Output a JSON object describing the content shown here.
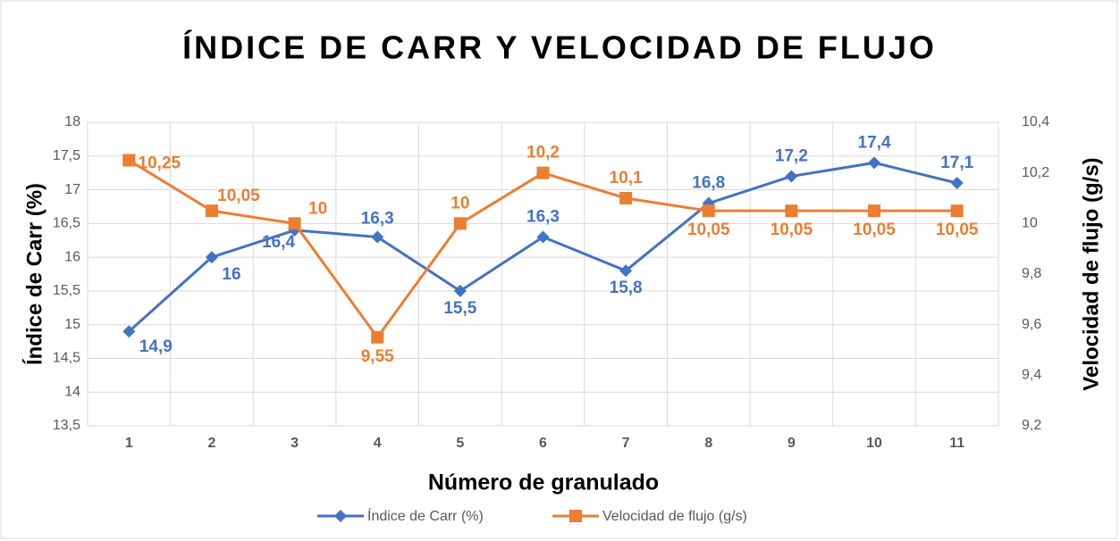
{
  "chart_data": {
    "type": "line",
    "title": "ÍNDICE DE CARR Y VELOCIDAD DE FLUJO",
    "xlabel": "Número de granulado",
    "ylabel": "Índice de Carr (%)",
    "y2label": "Velocidad de flujo (g/s)",
    "categories": [
      "1",
      "2",
      "3",
      "4",
      "5",
      "6",
      "7",
      "8",
      "9",
      "10",
      "11"
    ],
    "series": [
      {
        "name": "Índice de Carr (%)",
        "color": "#4472c4",
        "marker": "diamond",
        "values": [
          14.9,
          16,
          16.4,
          16.3,
          15.5,
          16.3,
          15.8,
          16.8,
          17.2,
          17.4,
          17.1
        ],
        "value_labels": [
          "14,9",
          "16",
          "16,4",
          "16,3",
          "15,5",
          "16,3",
          "15,8",
          "16,8",
          "17,2",
          "17,4",
          "17,1"
        ]
      },
      {
        "name": "Velocidad de flujo (g/s)",
        "color": "#ed7d31",
        "marker": "square",
        "axis": "y2",
        "values": [
          10.25,
          10.05,
          10,
          9.55,
          10,
          10.2,
          10.1,
          10.05,
          10.05,
          10.05,
          10.05
        ],
        "value_labels": [
          "10,25",
          "10,05",
          "10",
          "9,55",
          "10",
          "10,2",
          "10,1",
          "10,05",
          "10,05",
          "10,05",
          "10,05"
        ]
      }
    ],
    "ylim": [
      13.5,
      18
    ],
    "yticks": [
      {
        "value": 13.5,
        "label": "13,5"
      },
      14,
      {
        "value": 14.5,
        "label": "14,5"
      },
      15,
      {
        "value": 15.5,
        "label": "15,5"
      },
      16,
      {
        "value": 16.5,
        "label": "16,5"
      },
      17,
      {
        "value": 17.5,
        "label": "17,5"
      },
      18
    ],
    "y2lim": [
      9.2,
      10.4
    ],
    "y2ticks": [
      {
        "value": 9.2,
        "label": "9,2"
      },
      {
        "value": 9.4,
        "label": "9,4"
      },
      {
        "value": 9.6,
        "label": "9,6"
      },
      {
        "value": 9.8,
        "label": "9,8"
      },
      10,
      {
        "value": 10.2,
        "label": "10,2"
      },
      {
        "value": 10.4,
        "label": "10,4"
      }
    ],
    "grid": true,
    "legend": "bottom"
  }
}
